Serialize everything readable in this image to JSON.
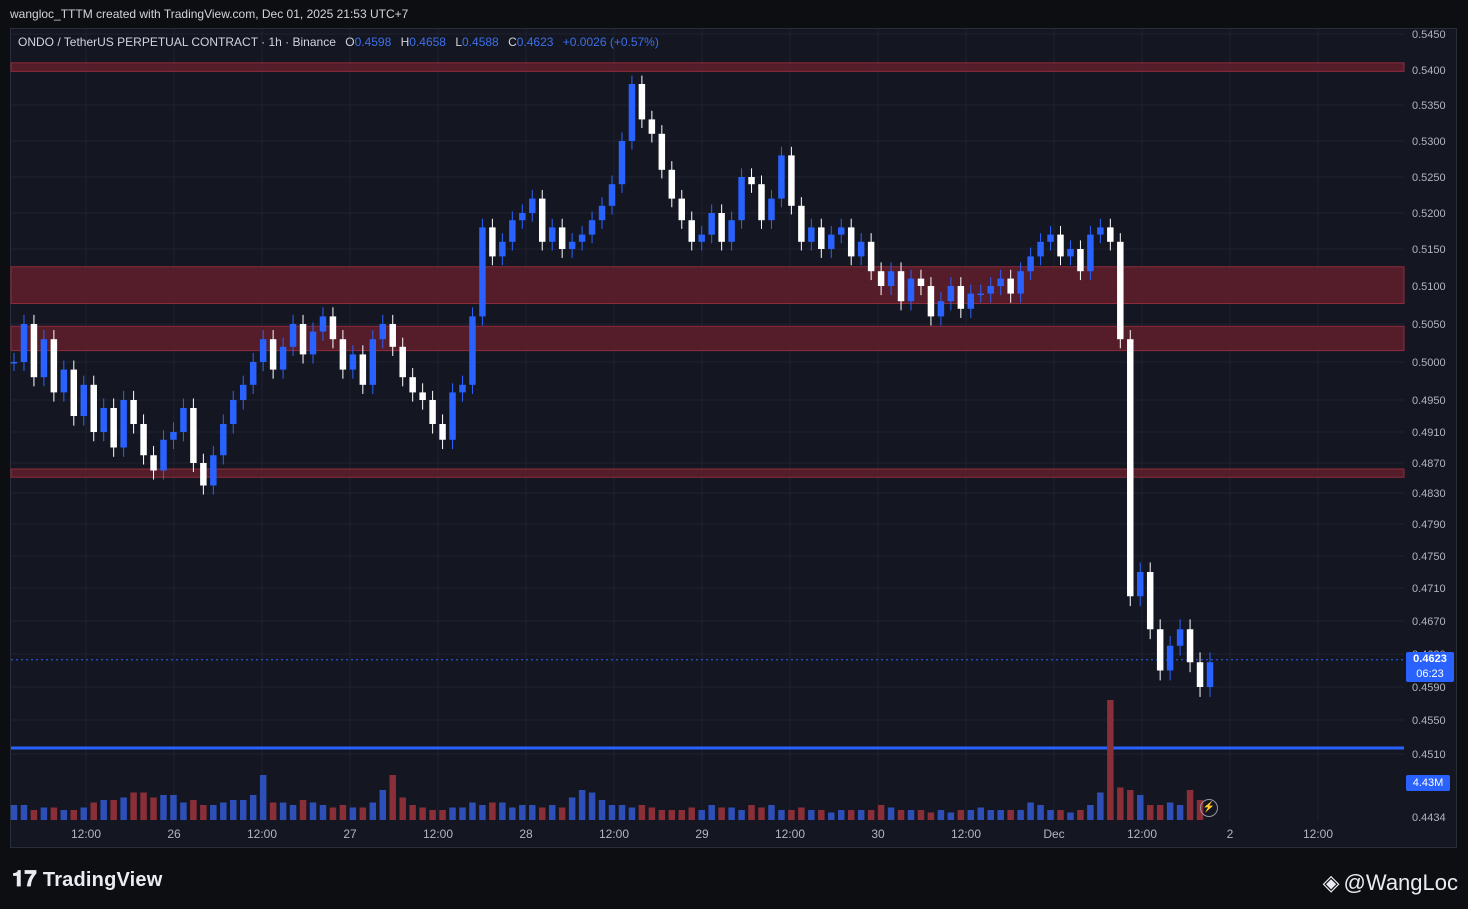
{
  "credit": "wangloc_TTTM created with TradingView.com, Dec 01, 2025 21:53 UTC+7",
  "legend": {
    "symbol": "ONDO / TetherUS PERPETUAL CONTRACT · 1h · Binance",
    "o_key": "O",
    "o_val": "0.4598",
    "h_key": "H",
    "h_val": "0.4658",
    "l_key": "L",
    "l_val": "0.4588",
    "c_key": "C",
    "c_val": "0.4623",
    "change": "+0.0026 (+0.57%)"
  },
  "price_tag": {
    "price": "0.4623",
    "countdown": "06:23"
  },
  "volume_tag": "4.43M",
  "footer": {
    "brand": "TradingView",
    "watermark": "@WangLoc"
  },
  "colors": {
    "up": "#2962ff",
    "down": "#ffffff",
    "zone": "#6b1f2c",
    "support": "#2962ff",
    "vol_up": "#2e4fb8",
    "vol_down": "#8a2f37"
  },
  "chart_data": {
    "type": "candlestick",
    "timeframe": "1h",
    "y_ticks": [
      "0.5450",
      "0.5400",
      "0.5350",
      "0.5300",
      "0.5250",
      "0.5200",
      "0.5150",
      "0.5100",
      "0.5050",
      "0.5000",
      "0.4950",
      "0.4910",
      "0.4870",
      "0.4830",
      "0.4790",
      "0.4750",
      "0.4710",
      "0.4670",
      "0.4630",
      "0.4590",
      "0.4550",
      "0.4510",
      "0.4434"
    ],
    "x_ticks": [
      "12:00",
      "26",
      "12:00",
      "27",
      "12:00",
      "28",
      "12:00",
      "29",
      "12:00",
      "30",
      "12:00",
      "Dec",
      "12:00",
      "2",
      "12:00"
    ],
    "zones": [
      [
        0.5398,
        0.541
      ],
      [
        0.5077,
        0.5126
      ],
      [
        0.5015,
        0.5047
      ],
      [
        0.4851,
        0.4862
      ]
    ],
    "support_line": 0.4517,
    "current_price": 0.4623,
    "candle_path": [
      0.5,
      0.505,
      0.498,
      0.503,
      0.496,
      0.499,
      0.493,
      0.497,
      0.491,
      0.494,
      0.489,
      0.495,
      0.492,
      0.488,
      0.486,
      0.49,
      0.491,
      0.494,
      0.487,
      0.484,
      0.488,
      0.492,
      0.495,
      0.497,
      0.5,
      0.503,
      0.499,
      0.502,
      0.505,
      0.501,
      0.504,
      0.506,
      0.503,
      0.499,
      0.501,
      0.497,
      0.503,
      0.505,
      0.502,
      0.498,
      0.496,
      0.495,
      0.492,
      0.49,
      0.496,
      0.497,
      0.506,
      0.518,
      0.514,
      0.516,
      0.519,
      0.52,
      0.522,
      0.516,
      0.518,
      0.515,
      0.516,
      0.517,
      0.519,
      0.521,
      0.524,
      0.53,
      0.538,
      0.533,
      0.531,
      0.526,
      0.522,
      0.519,
      0.516,
      0.517,
      0.52,
      0.516,
      0.519,
      0.525,
      0.524,
      0.519,
      0.522,
      0.528,
      0.521,
      0.516,
      0.518,
      0.515,
      0.517,
      0.518,
      0.514,
      0.516,
      0.512,
      0.51,
      0.512,
      0.508,
      0.511,
      0.51,
      0.506,
      0.508,
      0.51,
      0.507,
      0.509,
      0.509,
      0.51,
      0.511,
      0.509,
      0.512,
      0.514,
      0.516,
      0.517,
      0.514,
      0.515,
      0.512,
      0.517,
      0.518,
      0.516,
      0.503,
      0.47,
      0.473,
      0.466,
      0.461,
      0.464,
      0.466,
      0.462,
      0.459,
      0.462
    ],
    "volume_path": [
      0.3,
      0.3,
      0.2,
      0.25,
      0.25,
      0.2,
      0.2,
      0.25,
      0.35,
      0.4,
      0.4,
      0.45,
      0.55,
      0.55,
      0.45,
      0.5,
      0.5,
      0.35,
      0.4,
      0.3,
      0.3,
      0.35,
      0.4,
      0.4,
      0.5,
      0.9,
      0.35,
      0.35,
      0.3,
      0.4,
      0.35,
      0.3,
      0.25,
      0.3,
      0.25,
      0.25,
      0.35,
      0.6,
      0.9,
      0.45,
      0.3,
      0.25,
      0.2,
      0.2,
      0.25,
      0.25,
      0.35,
      0.3,
      0.35,
      0.35,
      0.25,
      0.3,
      0.3,
      0.25,
      0.3,
      0.25,
      0.45,
      0.6,
      0.55,
      0.4,
      0.3,
      0.3,
      0.25,
      0.3,
      0.25,
      0.2,
      0.2,
      0.2,
      0.25,
      0.2,
      0.3,
      0.25,
      0.25,
      0.2,
      0.3,
      0.25,
      0.3,
      0.2,
      0.2,
      0.25,
      0.2,
      0.2,
      0.15,
      0.2,
      0.2,
      0.2,
      0.2,
      0.3,
      0.25,
      0.2,
      0.2,
      0.2,
      0.15,
      0.2,
      0.15,
      0.2,
      0.2,
      0.25,
      0.2,
      0.2,
      0.2,
      0.2,
      0.35,
      0.3,
      0.2,
      0.2,
      0.15,
      0.2,
      0.3,
      0.55,
      2.4,
      0.65,
      0.6,
      0.5,
      0.3,
      0.3,
      0.35,
      0.3,
      0.6,
      0.4
    ]
  }
}
